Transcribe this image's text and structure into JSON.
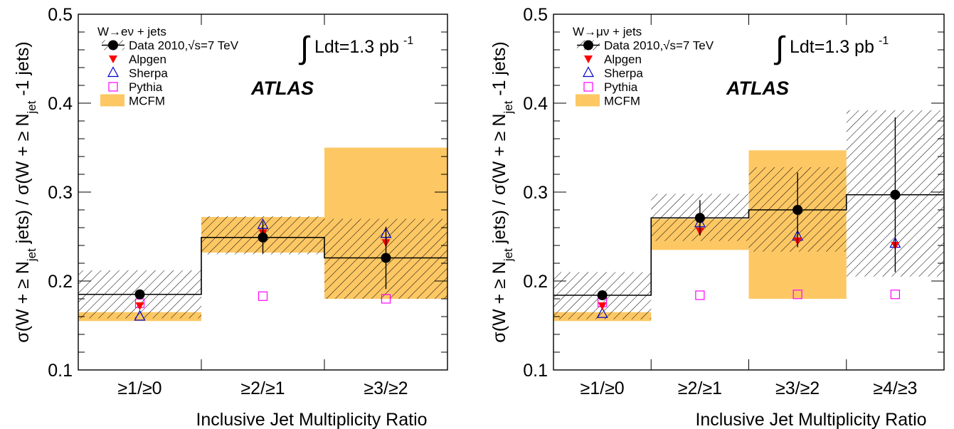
{
  "colors": {
    "data": "#000000",
    "alpgen": "#ff0000",
    "sherpa": "#0000cc",
    "pythia": "#ff00ff",
    "mcfm": "#fdc864",
    "hatch": "#000000"
  },
  "chart_data": [
    {
      "type": "scatter",
      "panel": "electron",
      "ylabel": "σ(W + ≥ N_jet jets) / σ(W + ≥ N_jet -1 jets)",
      "xlabel": "Inclusive Jet Multiplicity Ratio",
      "ylim": [
        0.1,
        0.5
      ],
      "yticks": [
        "0.1",
        "0.2",
        "0.3",
        "0.4",
        "0.5"
      ],
      "categories": [
        "≥1/≥0",
        "≥2/≥1",
        "≥3/≥2"
      ],
      "channel_label": "W→eν + jets",
      "lumi_text": "Ldt=1.3 pb",
      "lumi_sup": "-1",
      "experiment": "ATLAS",
      "legend": {
        "data": "Data 2010,√s=7 TeV",
        "alpgen": "Alpgen",
        "sherpa": "Sherpa",
        "pythia": "Pythia",
        "mcfm": "MCFM"
      },
      "data": {
        "values": [
          0.185,
          0.249,
          0.226
        ],
        "stat_err": [
          0.004,
          0.018,
          0.035
        ],
        "syst_band": [
          [
            0.158,
            0.212
          ],
          [
            0.23,
            0.273
          ],
          [
            0.18,
            0.27
          ]
        ]
      },
      "alpgen": [
        0.172,
        0.254,
        0.243
      ],
      "sherpa": [
        0.16,
        0.263,
        0.253
      ],
      "pythia": [
        0.175,
        0.183,
        0.18
      ],
      "mcfm": [
        [
          0.155,
          0.165
        ],
        [
          0.232,
          0.272
        ],
        [
          0.18,
          0.35
        ]
      ]
    },
    {
      "type": "scatter",
      "panel": "muon",
      "ylabel": "σ(W + ≥ N_jet jets) / σ(W + ≥ N_jet -1 jets)",
      "xlabel": "Inclusive Jet Multiplicity Ratio",
      "ylim": [
        0.1,
        0.5
      ],
      "yticks": [
        "0.1",
        "0.2",
        "0.3",
        "0.4",
        "0.5"
      ],
      "categories": [
        "≥1/≥0",
        "≥2/≥1",
        "≥3/≥2",
        "≥4/≥3"
      ],
      "channel_label": "W→μν + jets",
      "lumi_text": "Ldt=1.3 pb",
      "lumi_sup": "-1",
      "experiment": "ATLAS",
      "legend": {
        "data": "Data 2010,√s=7 TeV",
        "alpgen": "Alpgen",
        "sherpa": "Sherpa",
        "pythia": "Pythia",
        "mcfm": "MCFM"
      },
      "data": {
        "values": [
          0.184,
          0.271,
          0.28,
          0.297
        ],
        "stat_err": [
          0.004,
          0.02,
          0.042,
          0.087
        ],
        "syst_band": [
          [
            0.157,
            0.21
          ],
          [
            0.245,
            0.298
          ],
          [
            0.233,
            0.328
          ],
          [
            0.205,
            0.392
          ]
        ]
      },
      "alpgen": [
        0.172,
        0.256,
        0.245,
        0.24
      ],
      "sherpa": [
        0.163,
        0.265,
        0.25,
        0.242
      ],
      "pythia": [
        0.176,
        0.184,
        0.185,
        0.185
      ],
      "mcfm": [
        [
          0.155,
          0.165
        ],
        [
          0.235,
          0.27
        ],
        [
          0.18,
          0.347
        ],
        null
      ]
    }
  ]
}
